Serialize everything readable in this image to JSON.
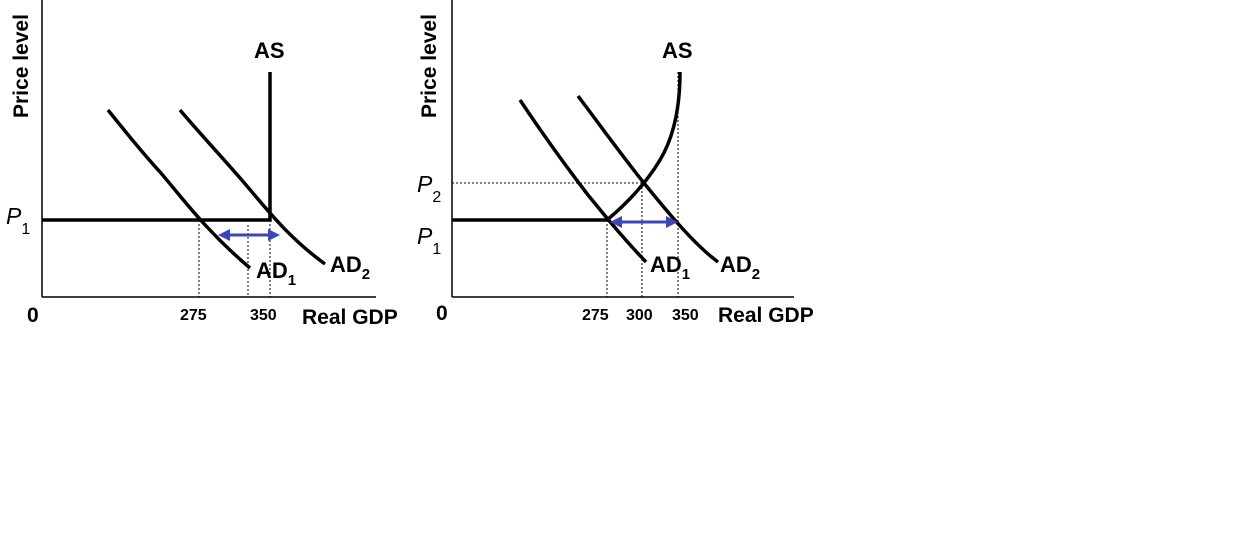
{
  "colors": {
    "curve": "#000000",
    "arrow": "#3d46b8",
    "guide": "#000000"
  },
  "chart_data": [
    {
      "type": "line",
      "ylabel": "Price level",
      "xlabel": "Real GDP",
      "origin_label": "0",
      "x_ticks": [
        "275",
        "350"
      ],
      "y_ticks": [
        {
          "base": "P",
          "sub": "1"
        }
      ],
      "series": [
        {
          "name": "AS",
          "shape": "vertical-at-capacity",
          "points": [
            [
              0,
              1
            ],
            [
              350,
              1
            ],
            [
              350,
              5
            ]
          ]
        },
        {
          "name": "AD",
          "sub": "1",
          "points": [
            [
              230,
              3.6
            ],
            [
              275,
              1
            ],
            [
              310,
              0
            ]
          ]
        },
        {
          "name": "AD",
          "sub": "2",
          "points": [
            [
              300,
              3.6
            ],
            [
              350,
              1
            ],
            [
              385,
              0
            ]
          ]
        }
      ],
      "annotations": [
        {
          "type": "arrow",
          "direction": "both",
          "from_x": 275,
          "to_x": 350
        }
      ]
    },
    {
      "type": "line",
      "ylabel": "Price level",
      "xlabel": "Real GDP",
      "origin_label": "0",
      "x_ticks": [
        "275",
        "300",
        "350"
      ],
      "y_ticks": [
        {
          "base": "P",
          "sub": "2"
        },
        {
          "base": "P",
          "sub": "1"
        }
      ],
      "series": [
        {
          "name": "AS",
          "shape": "horizontal-then-rising",
          "points": [
            [
              0,
              1
            ],
            [
              275,
              1
            ],
            [
              300,
              2
            ],
            [
              335,
              5
            ]
          ]
        },
        {
          "name": "AD",
          "sub": "1"
        },
        {
          "name": "AD",
          "sub": "2"
        }
      ],
      "annotations": [
        {
          "type": "arrow",
          "direction": "both",
          "from_x": 275,
          "to_x": 350
        }
      ]
    }
  ]
}
